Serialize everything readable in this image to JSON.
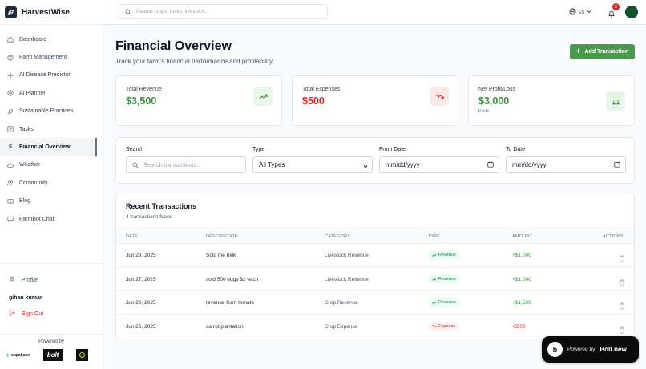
{
  "brand": {
    "name": "HarvestWise"
  },
  "sidebar": {
    "items": [
      {
        "label": "Dashboard",
        "icon": "home-icon"
      },
      {
        "label": "Farm Management",
        "icon": "sprout-icon"
      },
      {
        "label": "AI Disease Predictor",
        "icon": "sparkle-icon"
      },
      {
        "label": "AI Planner",
        "icon": "target-icon"
      },
      {
        "label": "Sustainable Practices",
        "icon": "leaf-icon"
      },
      {
        "label": "Tasks",
        "icon": "checkbox-icon"
      },
      {
        "label": "Financial Overview",
        "icon": "dollar-icon",
        "active": true
      },
      {
        "label": "Weather",
        "icon": "cloud-icon"
      },
      {
        "label": "Community",
        "icon": "users-icon"
      },
      {
        "label": "Blog",
        "icon": "book-icon"
      },
      {
        "label": "FarmBot Chat",
        "icon": "chat-icon"
      }
    ],
    "profile_label": "Profile",
    "user_name": "gihan kumar",
    "sign_out_label": "Sign Out",
    "powered_by_label": "Powered by",
    "supabase_label": "supabase",
    "bolt_label": "bolt"
  },
  "topbar": {
    "search_placeholder": "Search crops, tasks, livestock...",
    "language": "ES",
    "notification_count": "2"
  },
  "page": {
    "title": "Financial Overview",
    "subtitle": "Track your farm's financial performance and profitability",
    "add_button_label": "Add Transaction"
  },
  "summary": {
    "revenue": {
      "label": "Total Revenue",
      "value": "$3,500",
      "color": "#3f8f44"
    },
    "expenses": {
      "label": "Total Expenses",
      "value": "$500",
      "color": "#dc2626"
    },
    "profit": {
      "label": "Net Profit/Loss",
      "value": "$3,000",
      "note": "Profit",
      "color": "#3f8f44"
    }
  },
  "filters": {
    "search_label": "Search",
    "search_placeholder": "Search transactions...",
    "type_label": "Type",
    "type_value": "All Types",
    "from_label": "From Date",
    "from_value": "mm/dd/yyyy",
    "to_label": "To Date",
    "to_value": "mm/dd/yyyy"
  },
  "transactions": {
    "title": "Recent Transactions",
    "count_text": "4 transactions found",
    "columns": [
      "DATE",
      "DESCRIPTION",
      "CATEGORY",
      "TYPE",
      "AMOUNT",
      "ACTIONS"
    ],
    "rows": [
      {
        "date": "Jun 29, 2025",
        "description": "Sold the milk",
        "category": "Livestock Revenue",
        "type": "Revenue",
        "amount": "+$1,000"
      },
      {
        "date": "Jun 27, 2025",
        "description": "sold 500 eggs $2 each",
        "category": "Livestock Revenue",
        "type": "Revenue",
        "amount": "+$1,000"
      },
      {
        "date": "Jun 26, 2025",
        "description": "revenue form tomato",
        "category": "Crop Revenue",
        "type": "Revenue",
        "amount": "+$1,500"
      },
      {
        "date": "Jun 26, 2025",
        "description": "carrot plantation",
        "category": "Crop Expense",
        "type": "Expense",
        "amount": "-$500"
      }
    ]
  },
  "bolt_badge": {
    "powered_by": "Powered by",
    "brand": "Bolt.new"
  }
}
